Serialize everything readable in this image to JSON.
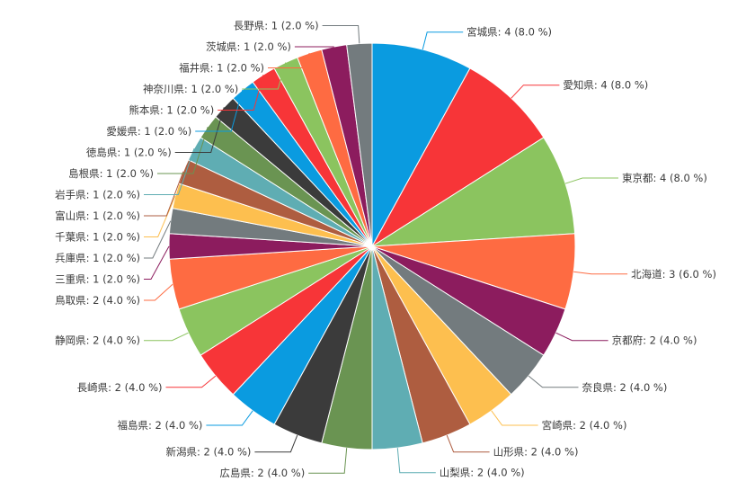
{
  "chart_data": {
    "type": "pie",
    "title": "",
    "total": 50,
    "slices": [
      {
        "label": "宮城県",
        "value": 4,
        "percent": "8.0 %",
        "color": "#0a9be0"
      },
      {
        "label": "愛知県",
        "value": 4,
        "percent": "8.0 %",
        "color": "#f73538"
      },
      {
        "label": "東京都",
        "value": 4,
        "percent": "8.0 %",
        "color": "#8bc45f"
      },
      {
        "label": "北海道",
        "value": 3,
        "percent": "6.0 %",
        "color": "#fe6b42"
      },
      {
        "label": "京都府",
        "value": 2,
        "percent": "4.0 %",
        "color": "#8c1c5e"
      },
      {
        "label": "奈良県",
        "value": 2,
        "percent": "4.0 %",
        "color": "#737b7e"
      },
      {
        "label": "宮崎県",
        "value": 2,
        "percent": "4.0 %",
        "color": "#fdbf4f"
      },
      {
        "label": "山形県",
        "value": 2,
        "percent": "4.0 %",
        "color": "#ae5d40"
      },
      {
        "label": "山梨県",
        "value": 2,
        "percent": "4.0 %",
        "color": "#5fadb3"
      },
      {
        "label": "広島県",
        "value": 2,
        "percent": "4.0 %",
        "color": "#6a9452"
      },
      {
        "label": "新潟県",
        "value": 2,
        "percent": "4.0 %",
        "color": "#3b3b3b"
      },
      {
        "label": "福島県",
        "value": 2,
        "percent": "4.0 %",
        "color": "#0a9be0"
      },
      {
        "label": "長崎県",
        "value": 2,
        "percent": "4.0 %",
        "color": "#f73538"
      },
      {
        "label": "静岡県",
        "value": 2,
        "percent": "4.0 %",
        "color": "#8bc45f"
      },
      {
        "label": "鳥取県",
        "value": 2,
        "percent": "4.0 %",
        "color": "#fe6b42"
      },
      {
        "label": "三重県",
        "value": 1,
        "percent": "2.0 %",
        "color": "#8c1c5e"
      },
      {
        "label": "兵庫県",
        "value": 1,
        "percent": "2.0 %",
        "color": "#737b7e"
      },
      {
        "label": "千葉県",
        "value": 1,
        "percent": "2.0 %",
        "color": "#fdbf4f"
      },
      {
        "label": "富山県",
        "value": 1,
        "percent": "2.0 %",
        "color": "#ae5d40"
      },
      {
        "label": "岩手県",
        "value": 1,
        "percent": "2.0 %",
        "color": "#5fadb3"
      },
      {
        "label": "島根県",
        "value": 1,
        "percent": "2.0 %",
        "color": "#6a9452"
      },
      {
        "label": "徳島県",
        "value": 1,
        "percent": "2.0 %",
        "color": "#3b3b3b"
      },
      {
        "label": "愛媛県",
        "value": 1,
        "percent": "2.0 %",
        "color": "#0a9be0"
      },
      {
        "label": "熊本県",
        "value": 1,
        "percent": "2.0 %",
        "color": "#f73538"
      },
      {
        "label": "神奈川県",
        "value": 1,
        "percent": "2.0 %",
        "color": "#8bc45f"
      },
      {
        "label": "福井県",
        "value": 1,
        "percent": "2.0 %",
        "color": "#fe6b42"
      },
      {
        "label": "茨城県",
        "value": 1,
        "percent": "2.0 %",
        "color": "#8c1c5e"
      },
      {
        "label": "長野県",
        "value": 1,
        "percent": "2.0 %",
        "color": "#737b7e"
      }
    ]
  }
}
